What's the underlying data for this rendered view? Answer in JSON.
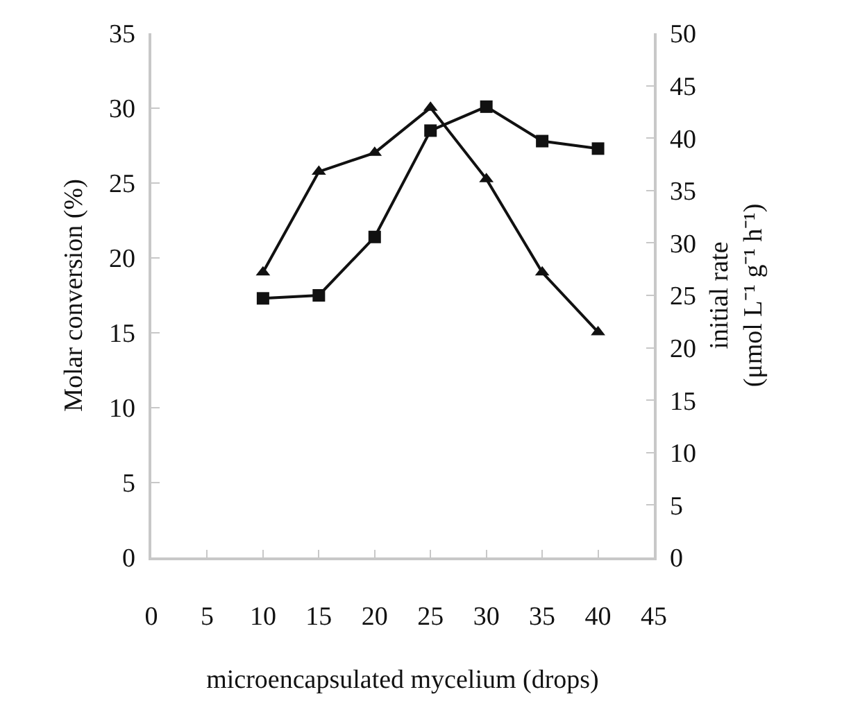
{
  "chart_data": {
    "type": "line",
    "xlabel": "microencapsulated mycelium (drops)",
    "ylabel": "Molar conversion (%)",
    "y2label": "initial rate\n(μmol L⁻¹ g⁻¹ h⁻¹)",
    "x": [
      10,
      15,
      20,
      25,
      30,
      35,
      40
    ],
    "xlim": [
      0,
      45
    ],
    "xticks": [
      0,
      5,
      10,
      15,
      20,
      25,
      30,
      35,
      40,
      45
    ],
    "ylim": [
      0,
      35
    ],
    "yticks": [
      0,
      5,
      10,
      15,
      20,
      25,
      30,
      35
    ],
    "y2lim": [
      0,
      50
    ],
    "y2ticks": [
      0,
      5,
      10,
      15,
      20,
      25,
      30,
      35,
      40,
      45,
      50
    ],
    "series": [
      {
        "color": "#111111",
        "marker": "square",
        "values": [
          17.3,
          17.5,
          21.4,
          28.5,
          30.1,
          27.8,
          27.3
        ]
      },
      {
        "color": "#111111",
        "marker": "triangle",
        "axis": "y2",
        "values": [
          27.2,
          36.8,
          38.6,
          42.9,
          36.1,
          27.2,
          21.5
        ]
      }
    ]
  }
}
